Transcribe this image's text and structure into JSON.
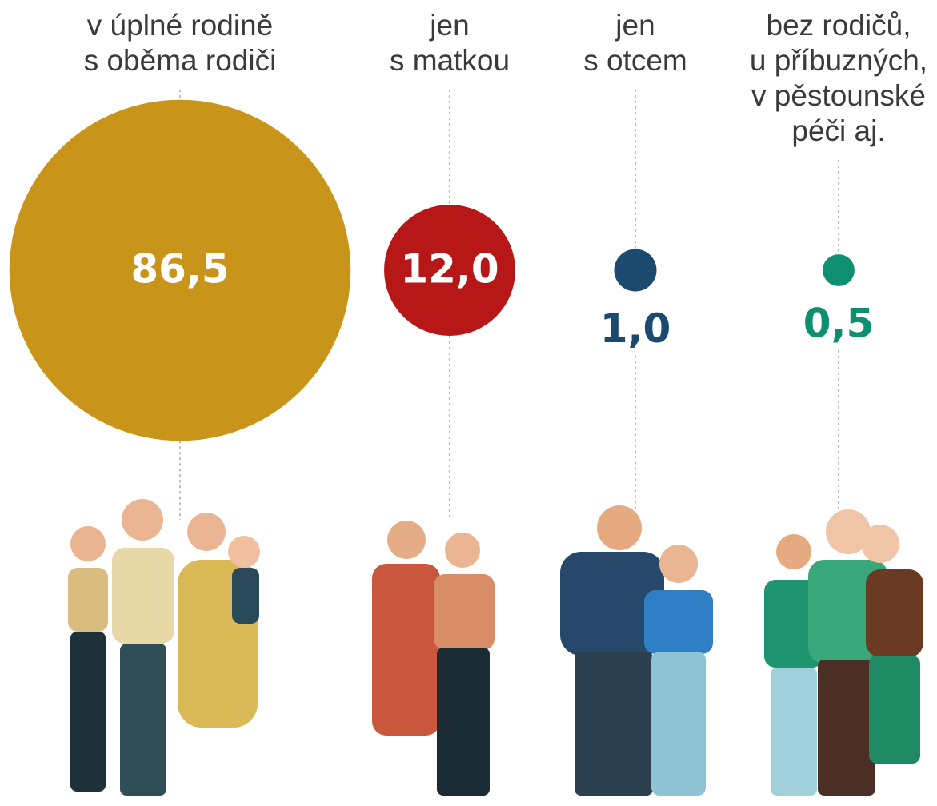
{
  "chart_data": {
    "type": "bubble",
    "categories": [
      "v úplné rodině\ns oběma rodiči",
      "jen\ns matkou",
      "jen\ns otcem",
      "bez rodičů,\nu příbuzných,\nv pěstounské\npéči aj."
    ],
    "values": [
      86.5,
      12.0,
      1.0,
      0.5
    ],
    "value_labels": [
      "86,5",
      "12,0",
      "1,0",
      "0,5"
    ],
    "colors": [
      "#c8951a",
      "#b81717",
      "#1b4a6e",
      "#0e9070"
    ]
  }
}
